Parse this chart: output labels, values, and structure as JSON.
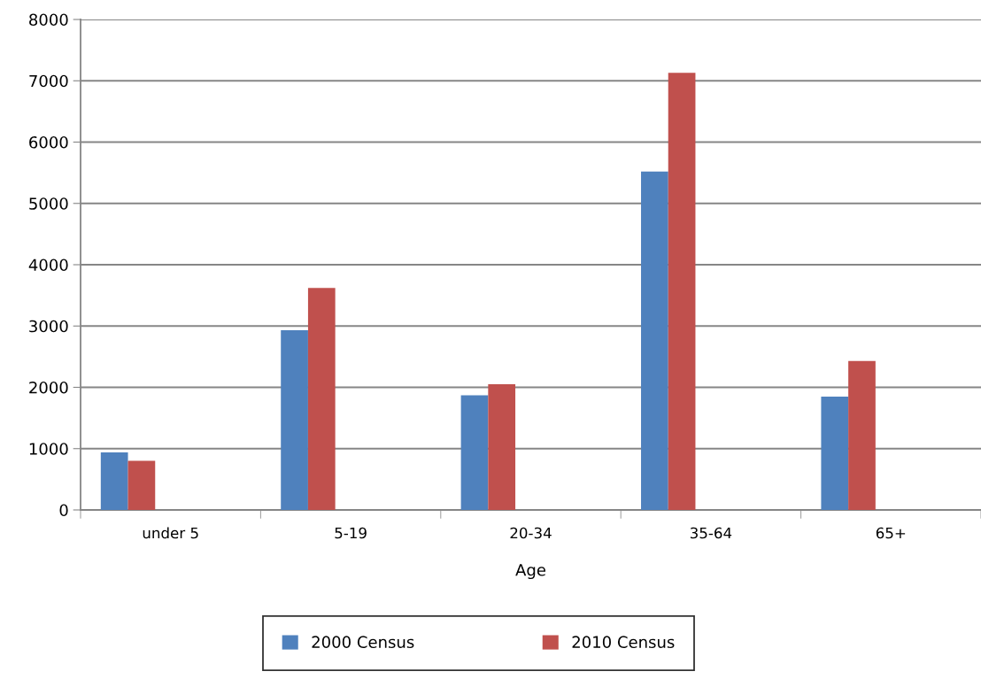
{
  "chart_data": {
    "type": "bar",
    "xlabel": "Age",
    "categories": [
      "under 5",
      "5-19",
      "20-34",
      "35-64",
      "65+"
    ],
    "series": [
      {
        "name": "2000 Census",
        "color": "#4f81bd",
        "values": [
          940,
          2930,
          1870,
          5520,
          1850
        ]
      },
      {
        "name": "2010 Census",
        "color": "#c0504d",
        "values": [
          800,
          3620,
          2050,
          7130,
          2430
        ]
      }
    ],
    "ylim": [
      0,
      8000
    ],
    "yticks": [
      0,
      1000,
      2000,
      3000,
      4000,
      5000,
      6000,
      7000,
      8000
    ],
    "grid": "y",
    "legend": "bottom"
  }
}
